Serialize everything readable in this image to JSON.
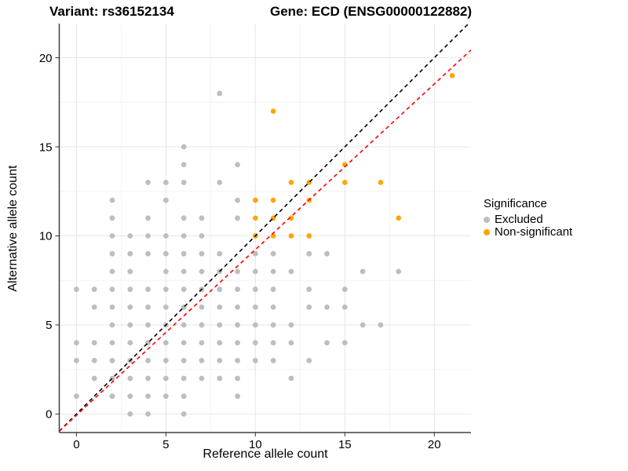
{
  "legend": {
    "title": "Significance",
    "items": [
      {
        "label": "Excluded",
        "color": "#BEBEBE"
      },
      {
        "label": "Non-significant",
        "color": "#FFA500"
      }
    ]
  },
  "chart_data": {
    "type": "scatter",
    "title_left": "Variant: rs36152134",
    "title_right": "Gene: ECD (ENSG00000122882)",
    "xlabel": "Reference allele count",
    "ylabel": "Alternative allele count",
    "xlim": [
      -0.96,
      22.05
    ],
    "ylim": [
      -1.04,
      21.92
    ],
    "x_ticks": [
      0,
      5,
      10,
      15,
      20
    ],
    "y_ticks": [
      0,
      5,
      10,
      15,
      20
    ],
    "x_minor_ticks": [
      2.5,
      7.5,
      12.5,
      17.5
    ],
    "y_minor_ticks": [
      2.5,
      7.5,
      12.5,
      17.5
    ],
    "grid": true,
    "legend_position": "right",
    "series": [
      {
        "name": "Excluded",
        "color": "#BEBEBE",
        "size": 3.4,
        "points": [
          [
            3,
            0
          ],
          [
            4,
            0
          ],
          [
            6,
            0
          ],
          [
            0,
            1
          ],
          [
            2,
            1
          ],
          [
            3,
            1
          ],
          [
            4,
            1
          ],
          [
            5,
            1
          ],
          [
            6,
            1
          ],
          [
            9,
            1
          ],
          [
            1,
            2
          ],
          [
            2,
            2
          ],
          [
            3,
            2
          ],
          [
            4,
            2
          ],
          [
            5,
            2
          ],
          [
            6,
            2
          ],
          [
            7,
            2
          ],
          [
            8,
            2
          ],
          [
            9,
            2
          ],
          [
            12,
            2
          ],
          [
            0,
            3
          ],
          [
            1,
            3
          ],
          [
            2,
            3
          ],
          [
            3,
            3
          ],
          [
            4,
            3
          ],
          [
            5,
            3
          ],
          [
            6,
            3
          ],
          [
            7,
            3
          ],
          [
            8,
            3
          ],
          [
            9,
            3
          ],
          [
            10,
            3
          ],
          [
            11,
            3
          ],
          [
            13,
            3
          ],
          [
            0,
            4
          ],
          [
            1,
            4
          ],
          [
            2,
            4
          ],
          [
            3,
            4
          ],
          [
            4,
            4
          ],
          [
            5,
            4
          ],
          [
            6,
            4
          ],
          [
            7,
            4
          ],
          [
            8,
            4
          ],
          [
            9,
            4
          ],
          [
            10,
            4
          ],
          [
            11,
            4
          ],
          [
            12,
            4
          ],
          [
            14,
            4
          ],
          [
            15,
            4
          ],
          [
            2,
            5
          ],
          [
            3,
            5
          ],
          [
            4,
            5
          ],
          [
            5,
            5
          ],
          [
            6,
            5
          ],
          [
            7,
            5
          ],
          [
            8,
            5
          ],
          [
            9,
            5
          ],
          [
            10,
            5
          ],
          [
            11,
            5
          ],
          [
            12,
            5
          ],
          [
            16,
            5
          ],
          [
            17,
            5
          ],
          [
            1,
            6
          ],
          [
            2,
            6
          ],
          [
            3,
            6
          ],
          [
            4,
            6
          ],
          [
            5,
            6
          ],
          [
            6,
            6
          ],
          [
            7,
            6
          ],
          [
            8,
            6
          ],
          [
            9,
            6
          ],
          [
            10,
            6
          ],
          [
            11,
            6
          ],
          [
            13,
            6
          ],
          [
            14,
            6
          ],
          [
            15,
            6
          ],
          [
            0,
            7
          ],
          [
            1,
            7
          ],
          [
            2,
            7
          ],
          [
            3,
            7
          ],
          [
            4,
            7
          ],
          [
            5,
            7
          ],
          [
            6,
            7
          ],
          [
            7,
            7
          ],
          [
            8,
            7
          ],
          [
            9,
            7
          ],
          [
            10,
            7
          ],
          [
            11,
            7
          ],
          [
            13,
            7
          ],
          [
            15,
            7
          ],
          [
            2,
            8
          ],
          [
            3,
            8
          ],
          [
            5,
            8
          ],
          [
            6,
            8
          ],
          [
            7,
            8
          ],
          [
            8,
            8
          ],
          [
            9,
            8
          ],
          [
            10,
            8
          ],
          [
            11,
            8
          ],
          [
            12,
            8
          ],
          [
            16,
            8
          ],
          [
            18,
            8
          ],
          [
            2,
            9
          ],
          [
            3,
            9
          ],
          [
            4,
            9
          ],
          [
            5,
            9
          ],
          [
            6,
            9
          ],
          [
            7,
            9
          ],
          [
            8,
            9
          ],
          [
            10,
            9
          ],
          [
            11,
            9
          ],
          [
            13,
            9
          ],
          [
            14,
            9
          ],
          [
            2,
            10
          ],
          [
            3,
            10
          ],
          [
            4,
            10
          ],
          [
            5,
            10
          ],
          [
            6,
            10
          ],
          [
            7,
            10
          ],
          [
            2,
            11
          ],
          [
            4,
            11
          ],
          [
            6,
            11
          ],
          [
            7,
            11
          ],
          [
            9,
            11
          ],
          [
            2,
            12
          ],
          [
            5,
            12
          ],
          [
            9,
            12
          ],
          [
            4,
            13
          ],
          [
            5,
            13
          ],
          [
            6,
            13
          ],
          [
            8,
            13
          ],
          [
            6,
            14
          ],
          [
            9,
            14
          ],
          [
            6,
            15
          ],
          [
            8,
            18
          ]
        ]
      },
      {
        "name": "Non-significant",
        "color": "#FFA500",
        "size": 3.3,
        "points": [
          [
            10,
            10
          ],
          [
            11,
            10
          ],
          [
            12,
            10
          ],
          [
            13,
            10
          ],
          [
            10,
            11
          ],
          [
            11,
            11
          ],
          [
            12,
            11
          ],
          [
            18,
            11
          ],
          [
            10,
            12
          ],
          [
            11,
            12
          ],
          [
            13,
            12
          ],
          [
            12,
            13
          ],
          [
            13,
            13
          ],
          [
            15,
            13
          ],
          [
            17,
            13
          ],
          [
            15,
            14
          ],
          [
            11,
            17
          ],
          [
            21,
            19
          ]
        ]
      }
    ],
    "reference_lines": [
      {
        "name": "identity",
        "slope": 1,
        "intercept": 0,
        "color": "#000000",
        "style": "dashed"
      },
      {
        "name": "regression",
        "slope": 0.93,
        "intercept": -0.07,
        "color": "#FF0000",
        "style": "dashed"
      }
    ]
  }
}
